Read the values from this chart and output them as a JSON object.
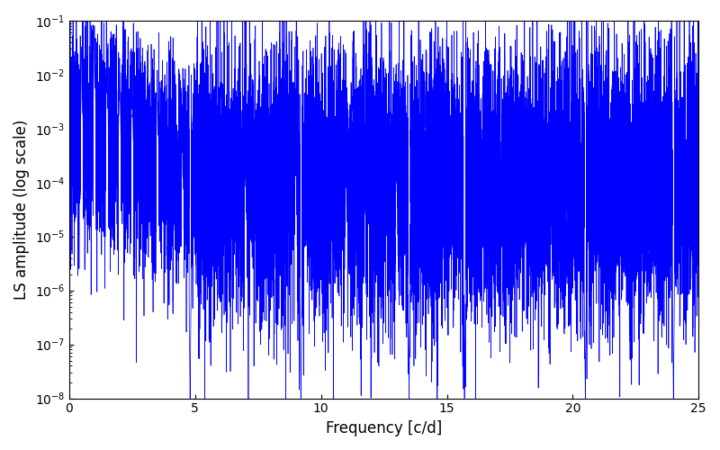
{
  "title": "",
  "xlabel": "Frequency [c/d]",
  "ylabel": "LS amplitude (log scale)",
  "xlim": [
    0,
    25
  ],
  "ylim": [
    1e-08,
    0.1
  ],
  "line_color": "blue",
  "background_color": "white",
  "figsize": [
    8.0,
    5.0
  ],
  "dpi": 100,
  "xticks": [
    0,
    5,
    10,
    15,
    20,
    25
  ],
  "seed": 12345,
  "n_points": 15000
}
